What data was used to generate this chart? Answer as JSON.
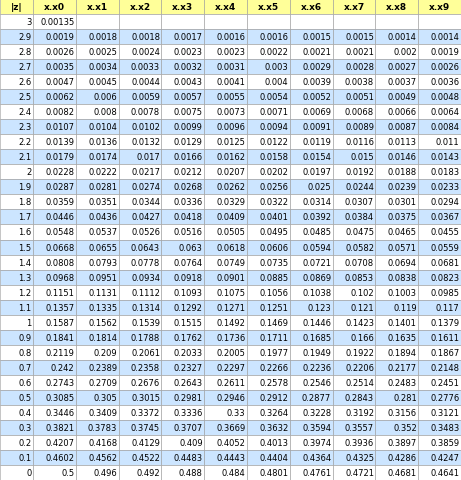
{
  "headers": [
    "|z|",
    "x.x0",
    "x.x1",
    "x.x2",
    "x.x3",
    "x.x4",
    "x.x5",
    "x.x6",
    "x.x7",
    "x.x8",
    "x.x9"
  ],
  "rows": [
    [
      "3",
      "0.00135",
      "",
      "",
      "",
      "",
      "",
      "",
      "",
      "",
      ""
    ],
    [
      "2.9",
      "0.0019",
      "0.0018",
      "0.0018",
      "0.0017",
      "0.0016",
      "0.0016",
      "0.0015",
      "0.0015",
      "0.0014",
      "0.0014"
    ],
    [
      "2.8",
      "0.0026",
      "0.0025",
      "0.0024",
      "0.0023",
      "0.0023",
      "0.0022",
      "0.0021",
      "0.0021",
      "0.002",
      "0.0019"
    ],
    [
      "2.7",
      "0.0035",
      "0.0034",
      "0.0033",
      "0.0032",
      "0.0031",
      "0.003",
      "0.0029",
      "0.0028",
      "0.0027",
      "0.0026"
    ],
    [
      "2.6",
      "0.0047",
      "0.0045",
      "0.0044",
      "0.0043",
      "0.0041",
      "0.004",
      "0.0039",
      "0.0038",
      "0.0037",
      "0.0036"
    ],
    [
      "2.5",
      "0.0062",
      "0.006",
      "0.0059",
      "0.0057",
      "0.0055",
      "0.0054",
      "0.0052",
      "0.0051",
      "0.0049",
      "0.0048"
    ],
    [
      "2.4",
      "0.0082",
      "0.008",
      "0.0078",
      "0.0075",
      "0.0073",
      "0.0071",
      "0.0069",
      "0.0068",
      "0.0066",
      "0.0064"
    ],
    [
      "2.3",
      "0.0107",
      "0.0104",
      "0.0102",
      "0.0099",
      "0.0096",
      "0.0094",
      "0.0091",
      "0.0089",
      "0.0087",
      "0.0084"
    ],
    [
      "2.2",
      "0.0139",
      "0.0136",
      "0.0132",
      "0.0129",
      "0.0125",
      "0.0122",
      "0.0119",
      "0.0116",
      "0.0113",
      "0.011"
    ],
    [
      "2.1",
      "0.0179",
      "0.0174",
      "0.017",
      "0.0166",
      "0.0162",
      "0.0158",
      "0.0154",
      "0.015",
      "0.0146",
      "0.0143"
    ],
    [
      "2",
      "0.0228",
      "0.0222",
      "0.0217",
      "0.0212",
      "0.0207",
      "0.0202",
      "0.0197",
      "0.0192",
      "0.0188",
      "0.0183"
    ],
    [
      "1.9",
      "0.0287",
      "0.0281",
      "0.0274",
      "0.0268",
      "0.0262",
      "0.0256",
      "0.025",
      "0.0244",
      "0.0239",
      "0.0233"
    ],
    [
      "1.8",
      "0.0359",
      "0.0351",
      "0.0344",
      "0.0336",
      "0.0329",
      "0.0322",
      "0.0314",
      "0.0307",
      "0.0301",
      "0.0294"
    ],
    [
      "1.7",
      "0.0446",
      "0.0436",
      "0.0427",
      "0.0418",
      "0.0409",
      "0.0401",
      "0.0392",
      "0.0384",
      "0.0375",
      "0.0367"
    ],
    [
      "1.6",
      "0.0548",
      "0.0537",
      "0.0526",
      "0.0516",
      "0.0505",
      "0.0495",
      "0.0485",
      "0.0475",
      "0.0465",
      "0.0455"
    ],
    [
      "1.5",
      "0.0668",
      "0.0655",
      "0.0643",
      "0.063",
      "0.0618",
      "0.0606",
      "0.0594",
      "0.0582",
      "0.0571",
      "0.0559"
    ],
    [
      "1.4",
      "0.0808",
      "0.0793",
      "0.0778",
      "0.0764",
      "0.0749",
      "0.0735",
      "0.0721",
      "0.0708",
      "0.0694",
      "0.0681"
    ],
    [
      "1.3",
      "0.0968",
      "0.0951",
      "0.0934",
      "0.0918",
      "0.0901",
      "0.0885",
      "0.0869",
      "0.0853",
      "0.0838",
      "0.0823"
    ],
    [
      "1.2",
      "0.1151",
      "0.1131",
      "0.1112",
      "0.1093",
      "0.1075",
      "0.1056",
      "0.1038",
      "0.102",
      "0.1003",
      "0.0985"
    ],
    [
      "1.1",
      "0.1357",
      "0.1335",
      "0.1314",
      "0.1292",
      "0.1271",
      "0.1251",
      "0.123",
      "0.121",
      "0.119",
      "0.117"
    ],
    [
      "1",
      "0.1587",
      "0.1562",
      "0.1539",
      "0.1515",
      "0.1492",
      "0.1469",
      "0.1446",
      "0.1423",
      "0.1401",
      "0.1379"
    ],
    [
      "0.9",
      "0.1841",
      "0.1814",
      "0.1788",
      "0.1762",
      "0.1736",
      "0.1711",
      "0.1685",
      "0.166",
      "0.1635",
      "0.1611"
    ],
    [
      "0.8",
      "0.2119",
      "0.209",
      "0.2061",
      "0.2033",
      "0.2005",
      "0.1977",
      "0.1949",
      "0.1922",
      "0.1894",
      "0.1867"
    ],
    [
      "0.7",
      "0.242",
      "0.2389",
      "0.2358",
      "0.2327",
      "0.2297",
      "0.2266",
      "0.2236",
      "0.2206",
      "0.2177",
      "0.2148"
    ],
    [
      "0.6",
      "0.2743",
      "0.2709",
      "0.2676",
      "0.2643",
      "0.2611",
      "0.2578",
      "0.2546",
      "0.2514",
      "0.2483",
      "0.2451"
    ],
    [
      "0.5",
      "0.3085",
      "0.305",
      "0.3015",
      "0.2981",
      "0.2946",
      "0.2912",
      "0.2877",
      "0.2843",
      "0.281",
      "0.2776"
    ],
    [
      "0.4",
      "0.3446",
      "0.3409",
      "0.3372",
      "0.3336",
      "0.33",
      "0.3264",
      "0.3228",
      "0.3192",
      "0.3156",
      "0.3121"
    ],
    [
      "0.3",
      "0.3821",
      "0.3783",
      "0.3745",
      "0.3707",
      "0.3669",
      "0.3632",
      "0.3594",
      "0.3557",
      "0.352",
      "0.3483"
    ],
    [
      "0.2",
      "0.4207",
      "0.4168",
      "0.4129",
      "0.409",
      "0.4052",
      "0.4013",
      "0.3974",
      "0.3936",
      "0.3897",
      "0.3859"
    ],
    [
      "0.1",
      "0.4602",
      "0.4562",
      "0.4522",
      "0.4483",
      "0.4443",
      "0.4404",
      "0.4364",
      "0.4325",
      "0.4286",
      "0.4247"
    ],
    [
      "0",
      "0.5",
      "0.496",
      "0.492",
      "0.488",
      "0.484",
      "0.4801",
      "0.4761",
      "0.4721",
      "0.4681",
      "0.4641"
    ]
  ],
  "header_bg": "#FFFF99",
  "odd_row_bg": "#FFFFFF",
  "even_row_bg": "#CCE5FF",
  "grid_color": "#999999",
  "font_size": 6.0,
  "header_font_size": 6.5,
  "fig_width": 4.61,
  "fig_height": 4.81,
  "dpi": 100
}
